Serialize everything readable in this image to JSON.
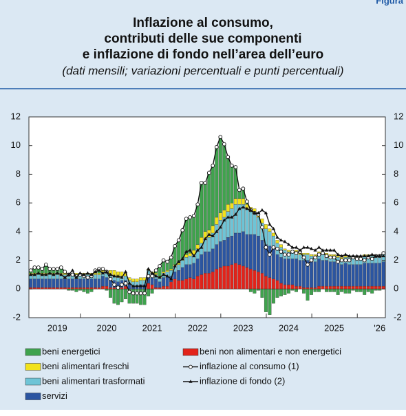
{
  "chart_data": {
    "type": "bar",
    "figure_label": "Figura",
    "title": [
      "Inflazione al consumo,",
      "contributi delle sue componenti",
      "e inflazione di fondo nell’area dell’euro"
    ],
    "subtitle": "(dati mensili; variazioni percentuali e punti percentuali)",
    "categories": [
      null,
      null,
      null,
      null,
      null,
      null,
      null,
      "2019",
      null,
      null,
      null,
      null,
      null,
      null,
      null,
      null,
      null,
      null,
      null,
      null,
      "2020",
      null,
      null,
      null,
      null,
      null,
      null,
      null,
      null,
      null,
      null,
      null,
      "2021",
      null,
      null,
      null,
      null,
      null,
      null,
      null,
      null,
      null,
      null,
      null,
      "2022",
      null,
      null,
      null,
      null,
      null,
      null,
      null,
      null,
      null,
      null,
      null,
      "2023",
      null,
      null,
      null,
      null,
      null,
      null,
      null,
      null,
      null,
      null,
      null,
      "2024",
      null,
      null,
      null,
      null,
      null,
      null,
      null,
      null,
      null,
      null,
      null,
      "2025",
      null,
      null,
      null,
      null,
      null,
      null,
      null,
      null,
      null,
      null,
      null,
      "'26",
      null
    ],
    "ylim": [
      -2,
      12
    ],
    "yticks": [
      -2,
      0,
      2,
      4,
      6,
      8,
      10,
      12
    ],
    "stacked": true,
    "series": [
      {
        "name": "beni energetici",
        "color": "#3fa34d",
        "values": [
          0.2,
          0.4,
          0.4,
          0.3,
          0.6,
          0.3,
          0.3,
          0.3,
          0.4,
          0.1,
          -0.1,
          -0.1,
          -0.2,
          -0.1,
          -0.2,
          -0.3,
          -0.2,
          0.2,
          0.3,
          0.1,
          -0.1,
          -0.6,
          -1.0,
          -1.1,
          -0.9,
          -0.7,
          -1.0,
          -1.0,
          -1.0,
          -1.1,
          -1.1,
          -0.5,
          -0.3,
          0.2,
          0.7,
          0.8,
          0.6,
          0.8,
          1.3,
          1.6,
          2.0,
          2.5,
          2.5,
          2.4,
          2.8,
          3.8,
          3.4,
          4.0,
          4.2,
          4.9,
          5.3,
          4.6,
          3.3,
          2.6,
          2.2,
          0.6,
          0.7,
          0.2,
          -0.2,
          -0.3,
          -0.1,
          -0.6,
          -1.6,
          -1.8,
          -1.0,
          -0.6,
          -0.5,
          -0.4,
          -0.3,
          -0.1,
          -0.2,
          0.1,
          -0.3,
          -0.8,
          -0.4,
          -0.2,
          -0.2,
          0.0,
          -0.2,
          -0.2,
          -0.2,
          -0.4,
          -0.2,
          -0.3,
          -0.3,
          -0.1,
          -0.2,
          -0.2,
          -0.4,
          -0.2,
          -0.3,
          -0.1,
          -0.1,
          0.0
        ]
      },
      {
        "name": "beni alimentari freschi",
        "color": "#f2e21a",
        "values": [
          0.1,
          0.1,
          0.1,
          0.1,
          0.1,
          0.1,
          0.1,
          0.1,
          0.1,
          0.1,
          0.1,
          0.1,
          0.1,
          0.1,
          0.1,
          0.1,
          0.1,
          0.1,
          0.1,
          0.1,
          0.2,
          0.3,
          0.4,
          0.4,
          0.3,
          0.2,
          0.2,
          0.2,
          0.2,
          0.2,
          0.2,
          0.1,
          0.1,
          0.1,
          0.1,
          0.1,
          0.1,
          0.1,
          0.1,
          0.1,
          0.1,
          0.2,
          0.2,
          0.3,
          0.3,
          0.4,
          0.5,
          0.5,
          0.5,
          0.5,
          0.5,
          0.5,
          0.5,
          0.4,
          0.4,
          0.4,
          0.4,
          0.3,
          0.3,
          0.3,
          0.3,
          0.3,
          0.3,
          0.2,
          0.2,
          0.2,
          0.2,
          0.1,
          0.1,
          0.1,
          0.1,
          0.1,
          0.1,
          0.1,
          0.1,
          0.1,
          0.1,
          0.1,
          0.1,
          0.1,
          0.1,
          0.1,
          0.1,
          0.1,
          0.1,
          0.1,
          0.1,
          0.1,
          0.1,
          0.1,
          0.1,
          0.1,
          0.1,
          0.1
        ]
      },
      {
        "name": "beni alimentari trasformati",
        "color": "#6ec4d6",
        "values": [
          0.3,
          0.3,
          0.3,
          0.3,
          0.3,
          0.3,
          0.3,
          0.3,
          0.3,
          0.3,
          0.3,
          0.3,
          0.3,
          0.3,
          0.3,
          0.3,
          0.3,
          0.3,
          0.3,
          0.3,
          0.3,
          0.3,
          0.3,
          0.3,
          0.3,
          0.3,
          0.3,
          0.3,
          0.3,
          0.3,
          0.3,
          0.3,
          0.3,
          0.3,
          0.3,
          0.3,
          0.3,
          0.4,
          0.4,
          0.4,
          0.5,
          0.5,
          0.6,
          0.6,
          0.7,
          0.8,
          0.9,
          1.0,
          1.1,
          1.4,
          1.5,
          1.6,
          1.8,
          1.9,
          2.0,
          2.0,
          1.9,
          1.8,
          1.6,
          1.5,
          1.3,
          1.2,
          1.1,
          1.0,
          0.9,
          0.8,
          0.7,
          0.6,
          0.5,
          0.5,
          0.5,
          0.4,
          0.4,
          0.4,
          0.4,
          0.4,
          0.4,
          0.4,
          0.4,
          0.4,
          0.4,
          0.4,
          0.4,
          0.4,
          0.5,
          0.5,
          0.5,
          0.5,
          0.5,
          0.5,
          0.5,
          0.5,
          0.5,
          0.5
        ]
      },
      {
        "name": "servizi",
        "color": "#2b55a1",
        "values": [
          0.6,
          0.6,
          0.6,
          0.6,
          0.6,
          0.6,
          0.6,
          0.6,
          0.6,
          0.6,
          0.6,
          0.6,
          0.6,
          0.6,
          0.6,
          0.6,
          0.6,
          0.6,
          0.6,
          0.7,
          0.6,
          0.6,
          0.5,
          0.4,
          0.5,
          0.4,
          0.3,
          0.2,
          0.2,
          0.3,
          0.3,
          0.6,
          0.5,
          0.6,
          0.4,
          0.6,
          0.7,
          0.4,
          0.5,
          0.7,
          0.9,
          1.0,
          0.9,
          1.1,
          1.2,
          1.4,
          1.5,
          1.5,
          1.6,
          1.7,
          1.8,
          1.8,
          2.0,
          2.0,
          2.1,
          2.2,
          2.4,
          2.3,
          2.4,
          2.5,
          2.5,
          2.3,
          2.2,
          2.2,
          2.1,
          1.8,
          1.8,
          1.8,
          1.8,
          1.8,
          1.9,
          1.8,
          1.9,
          1.9,
          1.8,
          1.8,
          1.9,
          1.8,
          1.8,
          1.7,
          1.7,
          1.6,
          1.5,
          1.6,
          1.5,
          1.5,
          1.5,
          1.5,
          1.6,
          1.6,
          1.6,
          1.6,
          1.6,
          1.7
        ]
      },
      {
        "name": "beni non alimentari e non energetici",
        "color": "#e2231a",
        "values": [
          0.1,
          0.1,
          0.1,
          0.1,
          0.1,
          0.1,
          0.1,
          0.1,
          0.1,
          0.1,
          0.1,
          0.1,
          0.1,
          0.1,
          0.1,
          0.1,
          0.1,
          0.1,
          0.1,
          0.2,
          0.2,
          0.1,
          0.1,
          0.1,
          0.1,
          0.2,
          0.0,
          0.0,
          0.0,
          0.0,
          0.0,
          0.4,
          0.3,
          0.1,
          0.1,
          0.2,
          0.2,
          0.5,
          0.7,
          0.6,
          0.6,
          0.7,
          0.8,
          0.7,
          0.9,
          1.0,
          1.1,
          1.1,
          1.2,
          1.4,
          1.5,
          1.6,
          1.6,
          1.7,
          1.8,
          1.7,
          1.6,
          1.5,
          1.4,
          1.3,
          1.2,
          1.1,
          0.9,
          0.8,
          0.7,
          0.6,
          0.4,
          0.3,
          0.3,
          0.3,
          0.2,
          0.2,
          0.1,
          0.1,
          0.1,
          0.1,
          0.2,
          0.2,
          0.2,
          0.2,
          0.2,
          0.2,
          0.2,
          0.2,
          0.2,
          0.2,
          0.2,
          0.2,
          0.2,
          0.2,
          0.2,
          0.2,
          0.2,
          0.2
        ]
      },
      {
        "name": "inflazione al consumo (1)",
        "type": "line",
        "marker": "circle",
        "color": "#111111",
        "values": [
          1.3,
          1.5,
          1.5,
          1.4,
          1.7,
          1.4,
          1.4,
          1.4,
          1.5,
          1.2,
          1.0,
          1.0,
          0.9,
          1.0,
          0.9,
          0.8,
          0.9,
          1.3,
          1.4,
          1.4,
          1.2,
          0.7,
          0.3,
          0.1,
          0.3,
          0.4,
          -0.2,
          -0.3,
          -0.3,
          -0.3,
          -0.3,
          0.9,
          0.9,
          1.3,
          1.6,
          2.0,
          1.9,
          2.2,
          3.0,
          3.4,
          4.1,
          4.9,
          5.0,
          5.1,
          5.9,
          7.4,
          7.4,
          8.1,
          8.6,
          9.9,
          10.6,
          10.1,
          9.2,
          8.6,
          8.5,
          6.9,
          7.0,
          6.1,
          5.5,
          5.3,
          5.2,
          4.3,
          2.9,
          2.4,
          2.9,
          2.8,
          2.6,
          2.4,
          2.4,
          2.6,
          2.5,
          2.6,
          2.2,
          1.7,
          2.0,
          2.2,
          2.4,
          2.5,
          2.3,
          2.2,
          2.2,
          1.9,
          2.0,
          2.0,
          2.0,
          2.2,
          2.1,
          2.1,
          2.0,
          2.2,
          2.1,
          2.3,
          2.3,
          2.5
        ]
      },
      {
        "name": "inflazione di fondo (2)",
        "type": "line",
        "marker": "triangle",
        "color": "#111111",
        "values": [
          1.0,
          1.0,
          1.1,
          1.0,
          1.0,
          1.1,
          1.0,
          1.1,
          1.0,
          0.8,
          1.0,
          1.3,
          0.8,
          1.1,
          1.0,
          1.1,
          1.0,
          1.2,
          1.3,
          1.1,
          1.2,
          1.0,
          0.9,
          0.9,
          0.8,
          1.2,
          0.4,
          0.2,
          0.2,
          0.2,
          0.2,
          1.4,
          1.1,
          0.9,
          0.8,
          1.0,
          0.9,
          0.7,
          1.6,
          1.9,
          2.1,
          2.6,
          2.7,
          2.3,
          2.7,
          2.9,
          3.5,
          3.8,
          3.7,
          4.0,
          4.3,
          4.8,
          5.0,
          5.0,
          5.2,
          5.6,
          5.7,
          5.6,
          5.5,
          5.3,
          5.3,
          5.5,
          5.3,
          4.5,
          4.2,
          3.6,
          3.4,
          3.3,
          3.1,
          2.9,
          2.9,
          2.7,
          2.9,
          2.9,
          2.8,
          2.7,
          2.9,
          2.7,
          2.7,
          2.7,
          2.7,
          2.4,
          2.3,
          2.4,
          2.3,
          2.3,
          2.3,
          2.3,
          2.3,
          2.3,
          2.4,
          2.3,
          2.3,
          2.3
        ]
      }
    ]
  }
}
